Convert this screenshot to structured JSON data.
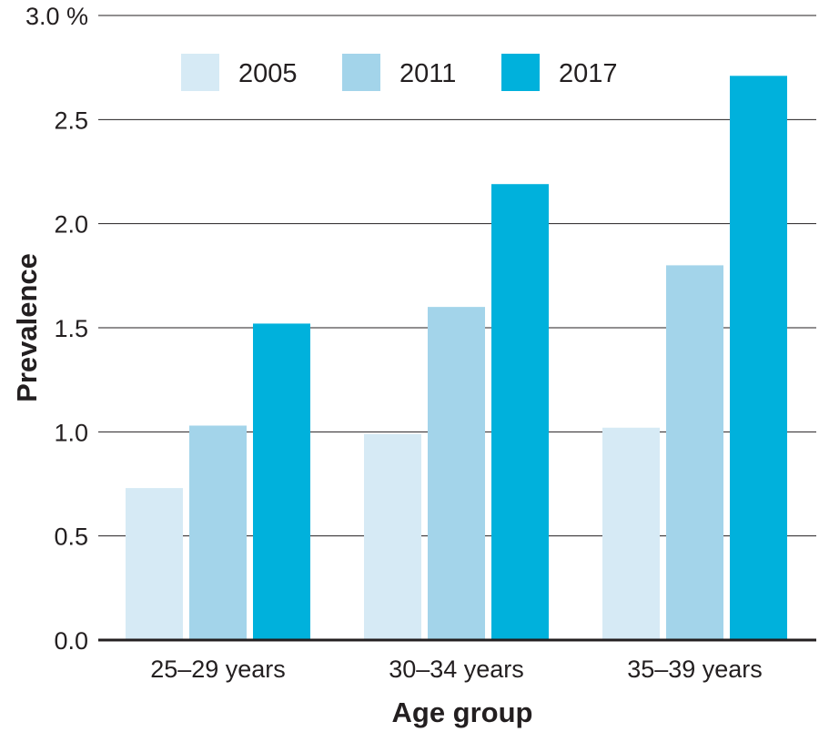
{
  "chart_data": {
    "type": "bar",
    "title": "",
    "xlabel": "Age group",
    "ylabel": "Prevalence",
    "ylim": [
      0,
      3.0
    ],
    "y_ticks": [
      "0.0",
      "0.5",
      "1.0",
      "1.5",
      "2.0",
      "2.5",
      "3.0 %"
    ],
    "y_tick_values": [
      0,
      0.5,
      1.0,
      1.5,
      2.0,
      2.5,
      3.0
    ],
    "grid": true,
    "legend_position": "top-center",
    "categories": [
      "25–29 years",
      "30–34 years",
      "35–39 years"
    ],
    "series": [
      {
        "name": "2005",
        "color": "#d6eaf5",
        "values": [
          0.73,
          0.99,
          1.02
        ]
      },
      {
        "name": "2011",
        "color": "#a3d4ea",
        "values": [
          1.03,
          1.6,
          1.8
        ]
      },
      {
        "name": "2017",
        "color": "#00b1dc",
        "values": [
          1.52,
          2.19,
          2.71
        ]
      }
    ]
  }
}
